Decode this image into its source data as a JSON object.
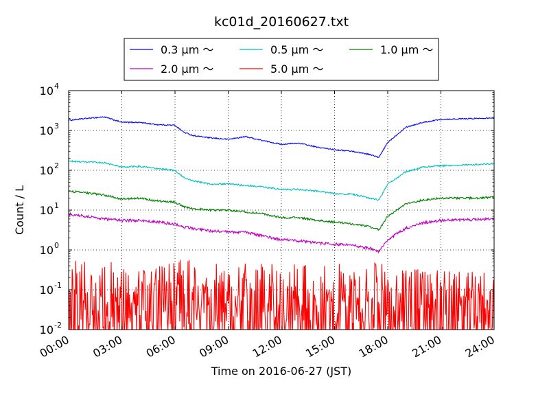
{
  "chart_data": {
    "type": "line",
    "title": "kc01d_20160627.txt",
    "xlabel": "Time on 2016-06-27 (JST)",
    "ylabel": "Count / L",
    "yscale": "log",
    "ylim": [
      0.01,
      10000
    ],
    "xlim_hours": [
      0,
      24
    ],
    "grid": true,
    "legend_placement": "top, above plot",
    "x_ticks": [
      {
        "label": "00:00",
        "hour": 0
      },
      {
        "label": "03:00",
        "hour": 3
      },
      {
        "label": "06:00",
        "hour": 6
      },
      {
        "label": "09:00",
        "hour": 9
      },
      {
        "label": "12:00",
        "hour": 12
      },
      {
        "label": "15:00",
        "hour": 15
      },
      {
        "label": "18:00",
        "hour": 18
      },
      {
        "label": "21:00",
        "hour": 21
      },
      {
        "label": "24:00",
        "hour": 24
      }
    ],
    "y_ticks": [
      {
        "base": "10",
        "exp": "-2",
        "value": 0.01
      },
      {
        "base": "10",
        "exp": "-1",
        "value": 0.1
      },
      {
        "base": "10",
        "exp": "0",
        "value": 1
      },
      {
        "base": "10",
        "exp": "1",
        "value": 10
      },
      {
        "base": "10",
        "exp": "2",
        "value": 100
      },
      {
        "base": "10",
        "exp": "3",
        "value": 1000
      },
      {
        "base": "10",
        "exp": "4",
        "value": 10000
      }
    ],
    "x_hours": [
      0,
      1,
      2,
      3,
      4,
      5,
      6,
      6.5,
      7,
      8,
      9,
      10,
      11,
      12,
      13,
      14,
      15,
      16,
      17,
      17.5,
      18,
      19,
      20,
      21,
      22,
      23,
      24
    ],
    "series": [
      {
        "name": "0.3 μm ～",
        "color": "#0000ff",
        "noise": 0.015,
        "values": [
          1800,
          2000,
          2200,
          1600,
          1600,
          1400,
          1350,
          900,
          750,
          650,
          600,
          700,
          550,
          450,
          480,
          380,
          330,
          300,
          250,
          210,
          500,
          1200,
          1600,
          1900,
          1950,
          2000,
          2100
        ]
      },
      {
        "name": "0.5 μm ～",
        "color": "#00bfbf",
        "noise": 0.02,
        "values": [
          170,
          160,
          155,
          120,
          125,
          110,
          100,
          65,
          55,
          45,
          45,
          42,
          38,
          33,
          33,
          30,
          26,
          25,
          20,
          18,
          45,
          90,
          120,
          130,
          135,
          140,
          145
        ]
      },
      {
        "name": "1.0 μm ～",
        "color": "#008000",
        "noise": 0.025,
        "values": [
          30,
          27,
          24,
          19,
          20,
          17,
          16,
          12,
          11,
          10,
          10,
          9,
          8,
          6.5,
          6.5,
          5.5,
          5,
          4.5,
          3.8,
          3.2,
          7,
          14,
          18,
          20,
          20,
          20,
          21
        ]
      },
      {
        "name": "2.0 μm ～",
        "color": "#bf00bf",
        "noise": 0.035,
        "values": [
          8,
          7,
          6,
          5.5,
          5.5,
          5,
          4.5,
          3.8,
          3.5,
          3,
          2.8,
          2.8,
          2.2,
          1.8,
          1.7,
          1.5,
          1.4,
          1.3,
          1.1,
          0.9,
          1.8,
          3.5,
          4.8,
          5.5,
          5.7,
          5.8,
          6
        ]
      },
      {
        "name": "5.0 μm ～",
        "color": "#ff0000",
        "noise": 0.35,
        "values": [
          0.05,
          0.05,
          0.045,
          0.045,
          0.04,
          0.045,
          0.05,
          0.05,
          0.05,
          0.045,
          0.045,
          0.045,
          0.04,
          0.04,
          0.04,
          0.04,
          0.04,
          0.04,
          0.04,
          0.05,
          0.04,
          0.035,
          0.03,
          0.03,
          0.03,
          0.03,
          0.03
        ]
      }
    ]
  }
}
